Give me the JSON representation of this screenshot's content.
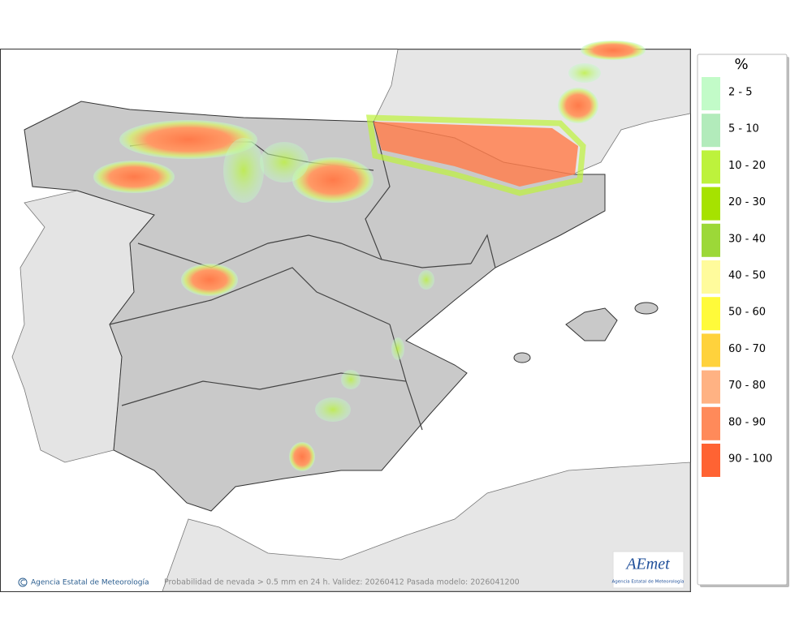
{
  "map": {
    "caption": "Probabilidad de nevada > 0.5 mm en 24 h. Validez: 20260412 Pasada modelo: 2026041200",
    "credit": "Agencia Estatal de Meteorología",
    "logo": "AEmet",
    "logo_subtitle": "Agencia Estatal de Meteorología"
  },
  "legend": {
    "title": "%",
    "items": [
      {
        "label": "2 - 5",
        "color": "#c2fbc8"
      },
      {
        "label": "5 - 10",
        "color": "#b2ebbb"
      },
      {
        "label": "10 - 20",
        "color": "#bdf23c"
      },
      {
        "label": "20 - 30",
        "color": "#a6e200"
      },
      {
        "label": "30 - 40",
        "color": "#9cd838"
      },
      {
        "label": "40 - 50",
        "color": "#fffb9c"
      },
      {
        "label": "50 - 60",
        "color": "#fffa3a"
      },
      {
        "label": "60 - 70",
        "color": "#ffd23c"
      },
      {
        "label": "70 - 80",
        "color": "#ffb283"
      },
      {
        "label": "80 - 90",
        "color": "#ff8a5a"
      },
      {
        "label": "90 - 100",
        "color": "#ff6333"
      }
    ]
  }
}
